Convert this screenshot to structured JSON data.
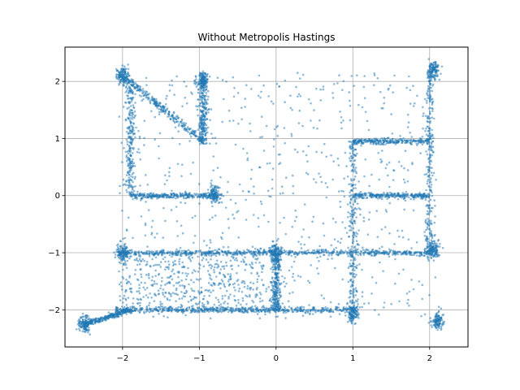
{
  "chart_data": {
    "type": "scatter",
    "title": "Without Metropolis Hastings",
    "xlabel": "",
    "ylabel": "",
    "xlim": [
      -2.75,
      2.5
    ],
    "ylim": [
      -2.65,
      2.6
    ],
    "xticks": [
      -2,
      -1,
      0,
      1,
      2
    ],
    "yticks": [
      -2,
      -1,
      0,
      1,
      2
    ],
    "xtick_labels": [
      "−2",
      "−1",
      "0",
      "1",
      "2"
    ],
    "ytick_labels": [
      "−2",
      "−1",
      "0",
      "1",
      "2"
    ],
    "grid": true,
    "point_color": "#1f77b4",
    "point_alpha": 0.5,
    "approx_point_count": 6000,
    "structure": {
      "vertical_lines": [
        {
          "x": -1.9,
          "y_range": [
            0.0,
            2.05
          ]
        },
        {
          "x": -0.95,
          "y_range": [
            0.9,
            2.15
          ]
        },
        {
          "x": 1.0,
          "y_range": [
            -2.1,
            0.95
          ]
        },
        {
          "x": 2.0,
          "y_range": [
            -1.0,
            2.2
          ]
        },
        {
          "x": 0.0,
          "y_range": [
            -2.0,
            -1.0
          ]
        }
      ],
      "horizontal_lines": [
        {
          "y": 0.0,
          "x_range": [
            -1.9,
            -0.8
          ]
        },
        {
          "y": 0.0,
          "x_range": [
            1.0,
            2.0
          ]
        },
        {
          "y": 0.95,
          "x_range": [
            1.0,
            2.0
          ]
        },
        {
          "y": -1.0,
          "x_range": [
            -2.05,
            2.05
          ]
        },
        {
          "y": -2.0,
          "x_range": [
            -2.1,
            1.0
          ]
        }
      ],
      "diagonal_lines": [
        {
          "from": [
            -2.0,
            2.1
          ],
          "to": [
            -0.95,
            0.95
          ]
        },
        {
          "from": [
            -2.5,
            -2.25
          ],
          "to": [
            -1.9,
            -2.0
          ]
        }
      ],
      "dense_clusters": [
        {
          "center": [
            -2.0,
            2.1
          ]
        },
        {
          "center": [
            -0.95,
            2.0
          ]
        },
        {
          "center": [
            2.05,
            2.2
          ]
        },
        {
          "center": [
            -0.8,
            0.0
          ]
        },
        {
          "center": [
            -2.0,
            -1.0
          ]
        },
        {
          "center": [
            0.0,
            -1.0
          ]
        },
        {
          "center": [
            2.05,
            -0.95
          ]
        },
        {
          "center": [
            1.0,
            -2.05
          ]
        },
        {
          "center": [
            -2.5,
            -2.25
          ]
        },
        {
          "center": [
            2.1,
            -2.2
          ]
        }
      ]
    }
  }
}
